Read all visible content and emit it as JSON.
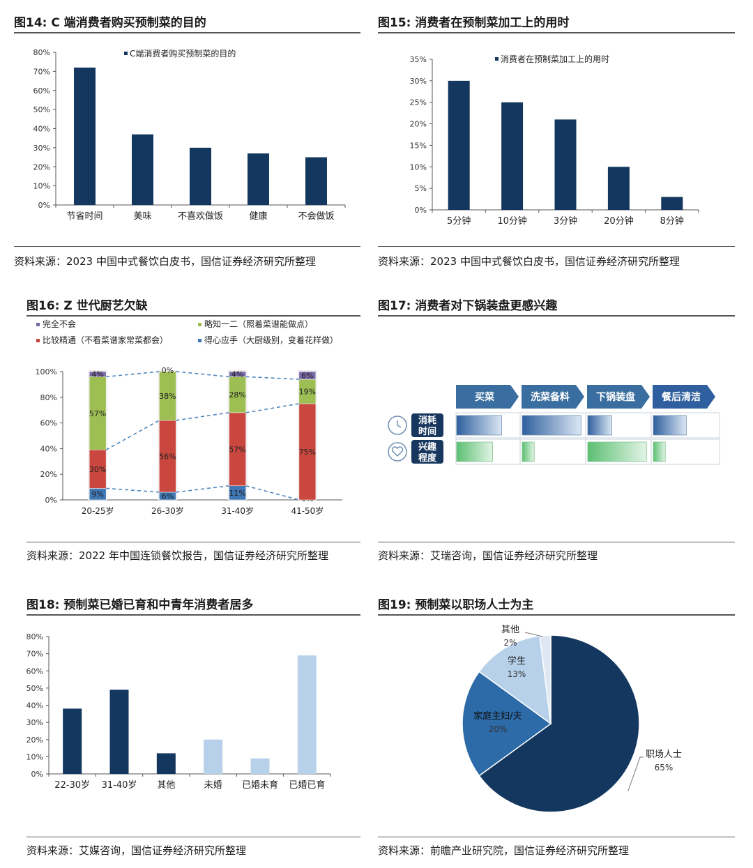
{
  "colors": {
    "navy": "#14375f",
    "light_blue": "#b7d1ea",
    "mid_blue": "#2c6aa8",
    "purple": "#7a6aa8",
    "green": "#9cbe52",
    "red": "#c9473f",
    "steel": "#3f78b5",
    "arrow": "#3b6ea0"
  },
  "fig14": {
    "title": "图14: C 端消费者购买预制菜的目的",
    "source": "资料来源：2023 中国中式餐饮白皮书，国信证券经济研究所整理"
  },
  "fig15": {
    "title": "图15: 消费者在预制菜加工上的用时",
    "source": "资料来源：2023 中国中式餐饮白皮书，国信证券经济研究所整理"
  },
  "fig16": {
    "title": "图16: Z 世代厨艺欠缺",
    "source": "资料来源：2022 年中国连锁餐饮报告，国信证券经济研究所整理"
  },
  "fig17": {
    "title": "图17: 消费者对下锅装盘更感兴趣",
    "source": "资料来源：艾瑞咨询，国信证券经济研究所整理",
    "steps": [
      "买菜",
      "洗菜备料",
      "下锅装盘",
      "餐后清洁"
    ],
    "rows": [
      {
        "label_line1": "消耗",
        "label_line2": "时间",
        "icon": "clock-icon",
        "levels": [
          0.75,
          0.98,
          0.4,
          0.55
        ]
      },
      {
        "label_line1": "兴趣",
        "label_line2": "程度",
        "icon": "heart-icon",
        "levels": [
          0.6,
          0.2,
          0.98,
          0.2
        ]
      }
    ]
  },
  "fig18": {
    "title": "图18: 预制菜已婚已育和中青年消费者居多",
    "source": "资料来源：艾媒咨询，国信证券经济研究所整理"
  },
  "fig19": {
    "title": "图19: 预制菜以职场人士为主",
    "source": "资料来源：前瞻产业研究院，国信证券经济研究所整理"
  },
  "chart_data": [
    {
      "id": "fig14",
      "type": "bar",
      "categories": [
        "节省时间",
        "美味",
        "不喜欢做饭",
        "健康",
        "不会做饭"
      ],
      "series": [
        {
          "name": "C端消费者购买预制菜的目的",
          "values": [
            72,
            37,
            30,
            27,
            25
          ]
        }
      ],
      "ylim": [
        0,
        80
      ],
      "yticks": [
        "0%",
        "10%",
        "20%",
        "30%",
        "40%",
        "50%",
        "60%",
        "70%",
        "80%"
      ],
      "legend": "top"
    },
    {
      "id": "fig15",
      "type": "bar",
      "categories": [
        "5分钟",
        "10分钟",
        "3分钟",
        "20分钟",
        "8分钟"
      ],
      "series": [
        {
          "name": "消费者在预制菜加工上的用时",
          "values": [
            30,
            25,
            21,
            10,
            3
          ]
        }
      ],
      "ylim": [
        0,
        35
      ],
      "yticks": [
        "0%",
        "5%",
        "10%",
        "15%",
        "20%",
        "25%",
        "30%",
        "35%"
      ],
      "legend": "top"
    },
    {
      "id": "fig16",
      "type": "bar",
      "stacked": true,
      "categories": [
        "20-25岁",
        "26-30岁",
        "31-40岁",
        "41-50岁"
      ],
      "series": [
        {
          "name": "得心应手（大厨级别，变着花样做）",
          "values": [
            9,
            6,
            11,
            0
          ],
          "labels": [
            "9%",
            "6%",
            "11%",
            "0%"
          ]
        },
        {
          "name": "比较精通（不看菜谱家常菜都会）",
          "values": [
            30,
            56,
            57,
            75
          ],
          "labels": [
            "30%",
            "56%",
            "57%",
            "75%"
          ]
        },
        {
          "name": "略知一二（照着菜谱能做点）",
          "values": [
            57,
            38,
            28,
            19
          ],
          "labels": [
            "57%",
            "38%",
            "28%",
            "19%"
          ]
        },
        {
          "name": "完全不会",
          "values": [
            4,
            0,
            4,
            6
          ],
          "labels": [
            "4%",
            "0%",
            "4%",
            "6%"
          ]
        }
      ],
      "legend_order": [
        "完全不会",
        "略知一二（照着菜谱能做点）",
        "比较精通（不看菜谱家常菜都会）",
        "得心应手（大厨级别，变着花样做）"
      ],
      "ylim": [
        0,
        100
      ],
      "yticks": [
        "0%",
        "20%",
        "40%",
        "60%",
        "80%",
        "100%"
      ],
      "legend": "top"
    },
    {
      "id": "fig18",
      "type": "bar",
      "categories": [
        "22-30岁",
        "31-40岁",
        "其他",
        "未婚",
        "已婚未育",
        "已婚已育"
      ],
      "values": [
        38,
        49,
        12,
        20,
        9,
        69
      ],
      "bar_colors": [
        "navy",
        "navy",
        "navy",
        "light_blue",
        "light_blue",
        "light_blue"
      ],
      "ylim": [
        0,
        80
      ],
      "yticks": [
        "0%",
        "10%",
        "20%",
        "30%",
        "40%",
        "50%",
        "60%",
        "70%",
        "80%"
      ]
    },
    {
      "id": "fig19",
      "type": "pie",
      "slices": [
        {
          "label": "职场人士",
          "value": 65,
          "text": "65%",
          "color": "navy"
        },
        {
          "label": "家庭主妇/夫",
          "value": 20,
          "text": "20%",
          "color": "mid_blue"
        },
        {
          "label": "学生",
          "value": 13,
          "text": "13%",
          "color": "light_blue"
        },
        {
          "label": "其他",
          "value": 2,
          "text": "2%",
          "color": "#dfe8f2"
        }
      ]
    }
  ]
}
